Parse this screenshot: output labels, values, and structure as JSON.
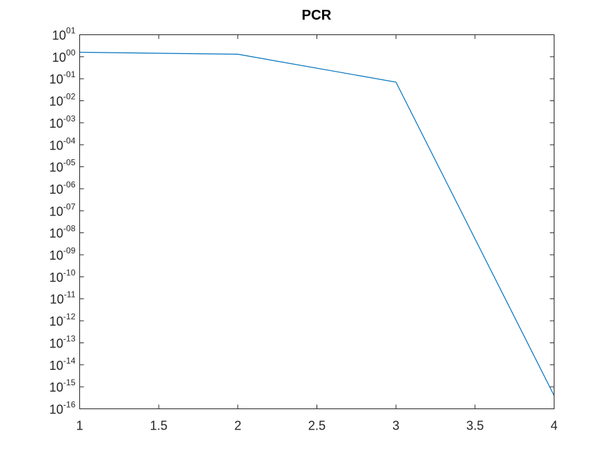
{
  "chart_data": {
    "type": "line",
    "title": "PCR",
    "xlabel": "",
    "ylabel": "",
    "y_scale": "log",
    "xlim": [
      1,
      4
    ],
    "ylim_exponent": [
      -16,
      1
    ],
    "x_ticks": [
      {
        "value": 1,
        "label": "1"
      },
      {
        "value": 1.5,
        "label": "1.5"
      },
      {
        "value": 2,
        "label": "2"
      },
      {
        "value": 2.5,
        "label": "2.5"
      },
      {
        "value": 3,
        "label": "3"
      },
      {
        "value": 3.5,
        "label": "3.5"
      },
      {
        "value": 4,
        "label": "4"
      }
    ],
    "y_ticks": [
      {
        "exp": 1,
        "base": "10",
        "sup": "01"
      },
      {
        "exp": 0,
        "base": "10",
        "sup": "00"
      },
      {
        "exp": -1,
        "base": "10",
        "sup": "-01"
      },
      {
        "exp": -2,
        "base": "10",
        "sup": "-02"
      },
      {
        "exp": -3,
        "base": "10",
        "sup": "-03"
      },
      {
        "exp": -4,
        "base": "10",
        "sup": "-04"
      },
      {
        "exp": -5,
        "base": "10",
        "sup": "-05"
      },
      {
        "exp": -6,
        "base": "10",
        "sup": "-06"
      },
      {
        "exp": -7,
        "base": "10",
        "sup": "-07"
      },
      {
        "exp": -8,
        "base": "10",
        "sup": "-08"
      },
      {
        "exp": -9,
        "base": "10",
        "sup": "-09"
      },
      {
        "exp": -10,
        "base": "10",
        "sup": "-10"
      },
      {
        "exp": -11,
        "base": "10",
        "sup": "-11"
      },
      {
        "exp": -12,
        "base": "10",
        "sup": "-12"
      },
      {
        "exp": -13,
        "base": "10",
        "sup": "-13"
      },
      {
        "exp": -14,
        "base": "10",
        "sup": "-14"
      },
      {
        "exp": -15,
        "base": "10",
        "sup": "-15"
      },
      {
        "exp": -16,
        "base": "10",
        "sup": "-16"
      }
    ],
    "grid": false,
    "box": true,
    "series": [
      {
        "color": "#0072bd",
        "x": [
          1,
          2,
          3,
          4
        ],
        "y": [
          1.6,
          1.3,
          0.07,
          4e-16
        ]
      }
    ]
  }
}
